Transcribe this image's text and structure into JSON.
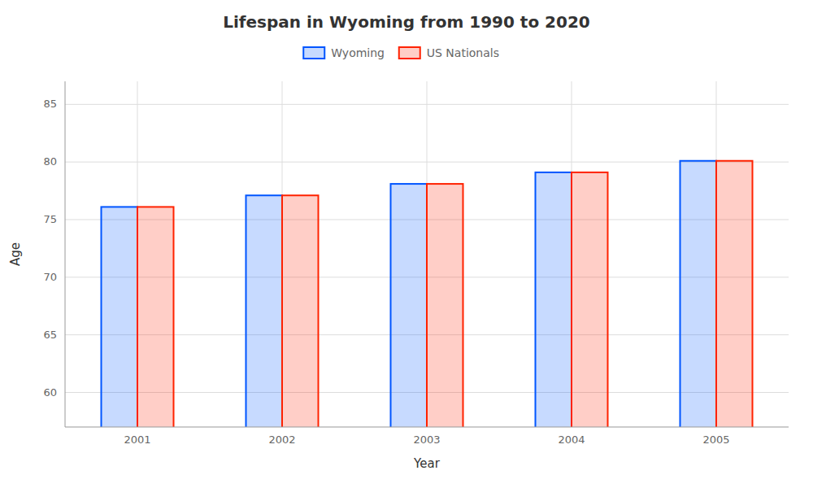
{
  "chart_data": {
    "type": "bar",
    "title": "Lifespan in Wyoming from 1990 to 2020",
    "x_label": "Year",
    "y_label": "Age",
    "categories": [
      "2001",
      "2002",
      "2003",
      "2004",
      "2005"
    ],
    "series": [
      {
        "name": "Wyoming",
        "color": "#0055ff",
        "values": [
          76.1,
          77.1,
          78.1,
          79.1,
          80.1
        ]
      },
      {
        "name": "US Nationals",
        "color": "#ff2200",
        "values": [
          76.1,
          77.1,
          78.1,
          79.1,
          80.1
        ]
      }
    ],
    "ylim": [
      57,
      87
    ],
    "yticks": [
      60,
      65,
      70,
      75,
      80,
      85
    ],
    "grid": true,
    "legend": "top"
  }
}
